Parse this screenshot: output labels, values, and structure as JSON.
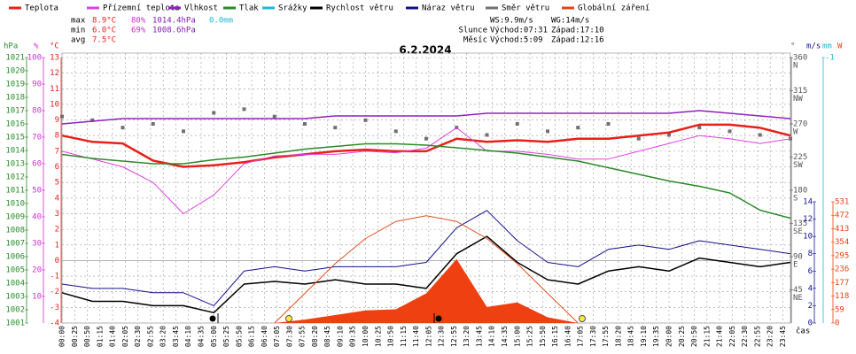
{
  "legend": {
    "title": "6.2.2024"
  },
  "stats": {
    "rows": [
      {
        "label": "max",
        "items": [
          "8.9°C",
          "80%",
          "1014.4hPa",
          "0.0mm"
        ]
      },
      {
        "label": "min",
        "items": [
          "6.0°C",
          "69%",
          "1008.6hPa"
        ]
      },
      {
        "label": "avg",
        "items": [
          "7.5°C"
        ]
      }
    ],
    "colors": [
      "#e8201a",
      "#d030d0",
      "#8020b0",
      "#20b8d8"
    ],
    "right": [
      [
        "",
        "WS:9.9m/s",
        "WG:14m/s"
      ],
      [
        "Slunce",
        "Východ:07:31",
        "Západ:17:10"
      ],
      [
        "Měsíc",
        "Východ:5:09",
        "Západ:12:16"
      ]
    ]
  },
  "chart_data": {
    "type": "line",
    "title": "6.2.2024",
    "x_label": "čas",
    "x": [
      0,
      60,
      120,
      180,
      240,
      300,
      360,
      420,
      480,
      540,
      600,
      660,
      720,
      780,
      840,
      900,
      960,
      1020,
      1080,
      1140,
      1200,
      1260,
      1320,
      1380,
      1440
    ],
    "xlim": [
      0,
      1440
    ],
    "xticks": [
      {
        "value": 0,
        "label": "00:00"
      },
      {
        "value": 25,
        "label": "00:25"
      },
      {
        "value": 50,
        "label": "00:50"
      },
      {
        "value": 75,
        "label": "01:15"
      },
      {
        "value": 100,
        "label": "01:40"
      },
      {
        "value": 125,
        "label": "02:05"
      },
      {
        "value": 150,
        "label": "02:30"
      },
      {
        "value": 175,
        "label": "02:55"
      },
      {
        "value": 200,
        "label": "03:20"
      },
      {
        "value": 225,
        "label": "03:45"
      },
      {
        "value": 250,
        "label": "04:10"
      },
      {
        "value": 275,
        "label": "04:35"
      },
      {
        "value": 300,
        "label": "05:00"
      },
      {
        "value": 325,
        "label": "05:25"
      },
      {
        "value": 350,
        "label": "05:50"
      },
      {
        "value": 375,
        "label": "06:15"
      },
      {
        "value": 400,
        "label": "06:40"
      },
      {
        "value": 425,
        "label": "07:05"
      },
      {
        "value": 450,
        "label": "07:30"
      },
      {
        "value": 475,
        "label": "07:55"
      },
      {
        "value": 500,
        "label": "08:20"
      },
      {
        "value": 525,
        "label": "08:45"
      },
      {
        "value": 550,
        "label": "09:10"
      },
      {
        "value": 575,
        "label": "09:35"
      },
      {
        "value": 600,
        "label": "10:00"
      },
      {
        "value": 625,
        "label": "10:25"
      },
      {
        "value": 650,
        "label": "10:50"
      },
      {
        "value": 675,
        "label": "11:15"
      },
      {
        "value": 700,
        "label": "11:40"
      },
      {
        "value": 725,
        "label": "12:05"
      },
      {
        "value": 750,
        "label": "12:30"
      },
      {
        "value": 775,
        "label": "12:55"
      },
      {
        "value": 800,
        "label": "13:20"
      },
      {
        "value": 825,
        "label": "13:45"
      },
      {
        "value": 850,
        "label": "14:10"
      },
      {
        "value": 875,
        "label": "14:35"
      },
      {
        "value": 900,
        "label": "15:00"
      },
      {
        "value": 925,
        "label": "15:25"
      },
      {
        "value": 950,
        "label": "15:50"
      },
      {
        "value": 975,
        "label": "16:15"
      },
      {
        "value": 1000,
        "label": "16:40"
      },
      {
        "value": 1025,
        "label": "17:05"
      },
      {
        "value": 1050,
        "label": "17:30"
      },
      {
        "value": 1075,
        "label": "17:55"
      },
      {
        "value": 1100,
        "label": "18:20"
      },
      {
        "value": 1125,
        "label": "18:45"
      },
      {
        "value": 1150,
        "label": "19:10"
      },
      {
        "value": 1175,
        "label": "19:35"
      },
      {
        "value": 1200,
        "label": "20:00"
      },
      {
        "value": 1225,
        "label": "20:25"
      },
      {
        "value": 1250,
        "label": "20:50"
      },
      {
        "value": 1275,
        "label": "21:15"
      },
      {
        "value": 1300,
        "label": "21:40"
      },
      {
        "value": 1325,
        "label": "22:05"
      },
      {
        "value": 1350,
        "label": "22:30"
      },
      {
        "value": 1375,
        "label": "22:55"
      },
      {
        "value": 1400,
        "label": "23:20"
      },
      {
        "value": 1425,
        "label": "23:45"
      }
    ],
    "grid": true,
    "axes": [
      {
        "label": "hPa",
        "color": "#2a8a2a",
        "lim": [
          1001,
          1021
        ],
        "ticks": [
          1001,
          1002,
          1003,
          1004,
          1005,
          1006,
          1007,
          1008,
          1009,
          1010,
          1011,
          1012,
          1013,
          1014,
          1015,
          1016,
          1017,
          1018,
          1019,
          1020,
          1021
        ]
      },
      {
        "label": "%",
        "color": "#d030d0",
        "lim": [
          0,
          100
        ],
        "ticks": [
          10,
          20,
          30,
          40,
          50,
          60,
          70,
          80,
          90,
          100
        ]
      },
      {
        "label": "°C",
        "color": "#e8201a",
        "lim": [
          -4,
          13
        ],
        "ticks": [
          -4,
          -3,
          -2,
          -1,
          0,
          1,
          2,
          3,
          4,
          5,
          6,
          7,
          8,
          9,
          10,
          11,
          12,
          13
        ]
      },
      {
        "label": "°",
        "color": "#555555",
        "lim": [
          0,
          360
        ],
        "ticks": [
          45,
          90,
          135,
          180,
          225,
          270,
          315,
          360
        ],
        "compass": [
          "NE",
          "E",
          "SE",
          "S",
          "SW",
          "W",
          "NW",
          "N"
        ]
      },
      {
        "label": "m/s",
        "color": "#10108a",
        "lim": [
          0,
          14
        ],
        "ticks": [
          0,
          2,
          4,
          6,
          8,
          10,
          12,
          14
        ]
      },
      {
        "label": "mm",
        "color": "#20b8d8",
        "lim": [
          0,
          -1
        ],
        "ticks": [
          -1
        ]
      },
      {
        "label": "W",
        "color": "#ee4010",
        "lim": [
          0,
          531
        ],
        "ticks": [
          0,
          59,
          118,
          177,
          236,
          295,
          354,
          413,
          472,
          531
        ]
      }
    ],
    "series": [
      {
        "name": "Teplota",
        "color": "#e8201a",
        "kind": "line",
        "axis": 2,
        "width": 2.5,
        "values": [
          8.0,
          7.6,
          7.5,
          6.4,
          6.0,
          6.1,
          6.3,
          6.6,
          6.8,
          7.0,
          7.1,
          7.0,
          7.0,
          7.8,
          7.6,
          7.7,
          7.6,
          7.8,
          7.8,
          8.0,
          8.2,
          8.7,
          8.7,
          8.5,
          8.0
        ]
      },
      {
        "name": "Přízemní teplota",
        "color": "#e040e0",
        "kind": "line",
        "axis": 2,
        "width": 1,
        "values": [
          7.0,
          6.5,
          6.0,
          5.0,
          3.0,
          4.2,
          6.2,
          6.7,
          6.8,
          6.8,
          7.0,
          6.9,
          7.2,
          8.5,
          7.0,
          7.0,
          6.8,
          6.5,
          6.5,
          7.0,
          7.5,
          8.0,
          7.8,
          7.5,
          7.8
        ]
      },
      {
        "name": "Vlhkost",
        "color": "#9020c0",
        "kind": "line",
        "axis": 1,
        "width": 1.5,
        "values": [
          75,
          76,
          77,
          77,
          77,
          77,
          77,
          77,
          77,
          78,
          78,
          78,
          78,
          78,
          79,
          79,
          79,
          79,
          79,
          79,
          79,
          80,
          79,
          78,
          77
        ]
      },
      {
        "name": "Tlak",
        "color": "#2a8a2a",
        "kind": "line",
        "axis": 0,
        "width": 1.5,
        "values": [
          1013.7,
          1013.4,
          1013.2,
          1013.0,
          1013.0,
          1013.3,
          1013.5,
          1013.8,
          1014.1,
          1014.3,
          1014.5,
          1014.5,
          1014.4,
          1014.2,
          1014.0,
          1013.8,
          1013.5,
          1013.2,
          1012.7,
          1012.2,
          1011.7,
          1011.3,
          1010.8,
          1009.5,
          1008.9
        ]
      },
      {
        "name": "Srážky",
        "color": "#20b8d8",
        "kind": "bar",
        "axis": 5,
        "values": [
          0,
          0,
          0,
          0,
          0,
          0,
          0,
          0,
          0,
          0,
          0,
          0,
          0,
          0,
          0,
          0,
          0,
          0,
          0,
          0,
          0,
          0,
          0,
          0,
          0
        ]
      },
      {
        "name": "Rychlost větru",
        "color": "#000000",
        "kind": "line",
        "axis": 4,
        "width": 1.5,
        "values": [
          3.5,
          2.5,
          2.5,
          2.0,
          2.0,
          1.2,
          4.5,
          4.8,
          4.5,
          5.0,
          4.5,
          4.5,
          4.0,
          8.0,
          10.0,
          7.0,
          5.0,
          4.5,
          6.0,
          6.5,
          6.0,
          7.5,
          7.0,
          6.5,
          7.0
        ]
      },
      {
        "name": "Náraz větru",
        "color": "#10108a",
        "kind": "line",
        "axis": 4,
        "width": 1,
        "values": [
          4.5,
          4,
          4,
          3.5,
          3.5,
          2,
          6,
          6.5,
          6,
          6.5,
          6.5,
          6.5,
          7,
          11,
          13,
          9.5,
          7,
          6.5,
          8.5,
          9,
          8.5,
          9.5,
          9,
          8.5,
          8
        ]
      },
      {
        "name": "Směr větru",
        "color": "#707070",
        "kind": "scatter",
        "axis": 3,
        "values": [
          280,
          275,
          265,
          270,
          260,
          285,
          290,
          280,
          270,
          265,
          275,
          260,
          250,
          265,
          255,
          270,
          260,
          265,
          270,
          250,
          255,
          265,
          260,
          255,
          250
        ]
      },
      {
        "name": "Globální záření",
        "color": "#ee4010",
        "kind": "area",
        "axis": 6,
        "values": [
          0,
          0,
          0,
          0,
          0,
          0,
          0,
          0,
          15,
          35,
          55,
          60,
          130,
          280,
          70,
          90,
          25,
          0,
          0,
          0,
          0,
          0,
          0,
          0,
          0
        ]
      },
      {
        "color": "#e05020",
        "kind": "line",
        "axis": 6,
        "width": 1,
        "values": [
          null,
          null,
          null,
          null,
          null,
          null,
          null,
          0,
          130,
          260,
          370,
          445,
          470,
          445,
          370,
          260,
          130,
          0,
          null,
          null,
          null,
          null,
          null,
          null,
          null
        ]
      }
    ]
  }
}
